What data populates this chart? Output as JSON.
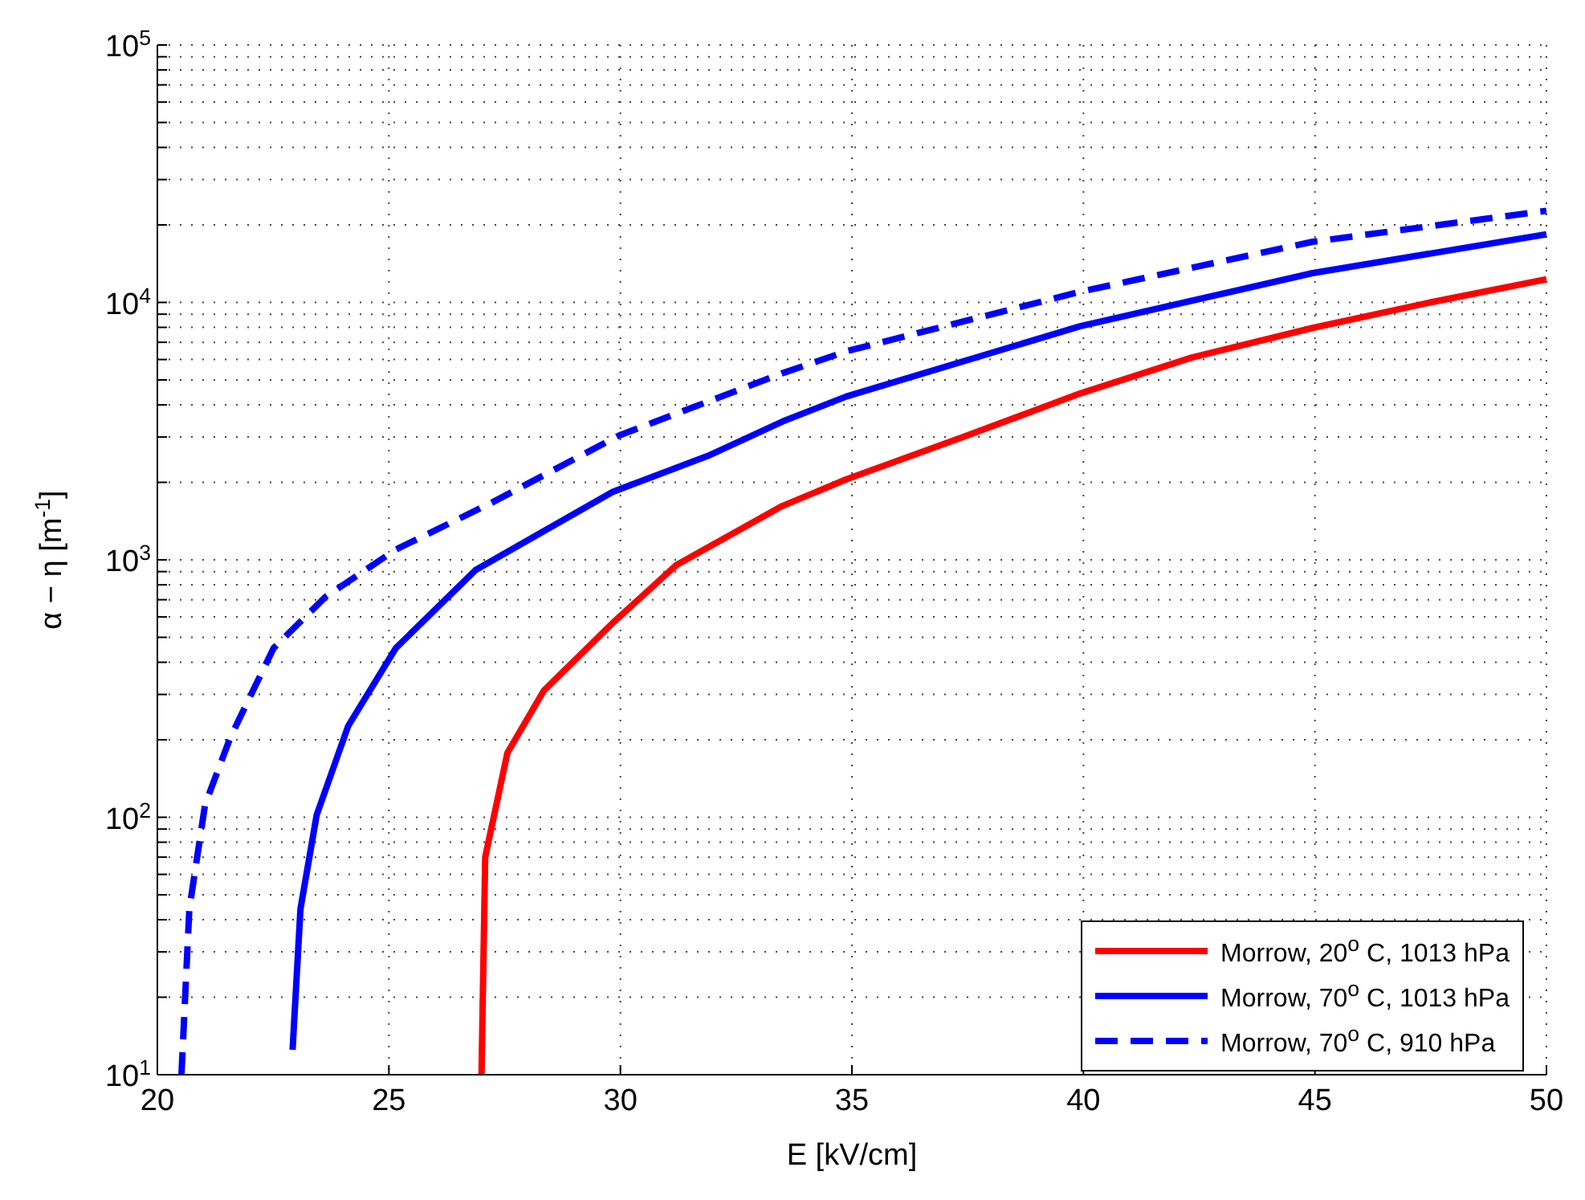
{
  "chart_data": {
    "type": "line",
    "xlabel": "E [kV/cm]",
    "ylabel": "α − η [m$^{-1}$]",
    "log": "y",
    "grid": true,
    "legend": "bottom right",
    "marker": "none",
    "xlim": [
      20,
      50
    ],
    "xticks": [
      20,
      25,
      30,
      35,
      40,
      45,
      50
    ],
    "ylim": [
      10,
      100000
    ],
    "yticks": [
      {
        "value": 10,
        "label": "10$^{1}$"
      },
      {
        "value": 20,
        "label": null
      },
      {
        "value": 30,
        "label": null
      },
      {
        "value": 40,
        "label": null
      },
      {
        "value": 50,
        "label": null
      },
      {
        "value": 60,
        "label": null
      },
      {
        "value": 70,
        "label": null
      },
      {
        "value": 80,
        "label": null
      },
      {
        "value": 90,
        "label": null
      },
      {
        "value": 100,
        "label": "10$^{2}$"
      },
      {
        "value": 200,
        "label": null
      },
      {
        "value": 300,
        "label": null
      },
      {
        "value": 400,
        "label": null
      },
      {
        "value": 500,
        "label": null
      },
      {
        "value": 600,
        "label": null
      },
      {
        "value": 700,
        "label": null
      },
      {
        "value": 800,
        "label": null
      },
      {
        "value": 900,
        "label": null
      },
      {
        "value": 1000,
        "label": "10$^{3}$"
      },
      {
        "value": 2000,
        "label": null
      },
      {
        "value": 3000,
        "label": null
      },
      {
        "value": 4000,
        "label": null
      },
      {
        "value": 5000,
        "label": null
      },
      {
        "value": 6000,
        "label": null
      },
      {
        "value": 7000,
        "label": null
      },
      {
        "value": 8000,
        "label": null
      },
      {
        "value": 9000,
        "label": null
      },
      {
        "value": 10000,
        "label": "10$^{4}$"
      },
      {
        "value": 20000,
        "label": null
      },
      {
        "value": 30000,
        "label": null
      },
      {
        "value": 40000,
        "label": null
      },
      {
        "value": 50000,
        "label": null
      },
      {
        "value": 60000,
        "label": null
      },
      {
        "value": 70000,
        "label": null
      },
      {
        "value": 80000,
        "label": null
      },
      {
        "value": 90000,
        "label": null
      },
      {
        "value": 100000,
        "label": "10$^{5}$"
      }
    ],
    "series": [
      {
        "name": "Morrow, 20$^{o}$ C, 1013 hPa",
        "color": "#ff0000",
        "line_style": "solid",
        "x": [
          27.0,
          27.08,
          27.56,
          28.35,
          29.83,
          31.2,
          33.5,
          34.88,
          37.39,
          39.93,
          42.34,
          44.95,
          47.49,
          50
        ],
        "values": [
          10,
          70,
          178,
          311,
          568,
          952,
          1620,
          2054,
          2994,
          4430,
          6110,
          7960,
          10000,
          12300
        ]
      },
      {
        "name": "Morrow, 70$^{o}$ C, 1013 hPa",
        "color": "#0000ff",
        "line_style": "solid",
        "x": [
          22.92,
          23.09,
          23.44,
          24.12,
          25.15,
          26.87,
          29.83,
          31.89,
          33.5,
          34.88,
          39.93,
          44.95,
          50
        ],
        "values": [
          12.5,
          44,
          102,
          226,
          454,
          912,
          1836,
          2535,
          3445,
          4310,
          8080,
          13000,
          18400
        ]
      },
      {
        "name": "Morrow, 70$^{o}$ C, 910 hPa",
        "color": "#0000ff",
        "line_style": "dashed",
        "x": [
          20.52,
          20.69,
          21.03,
          21.58,
          22.51,
          23.64,
          25.15,
          27.22,
          29.97,
          33.5,
          34.88,
          39.93,
          44.95,
          50
        ],
        "values": [
          10,
          44,
          112,
          205,
          454,
          720,
          1096,
          1667,
          3040,
          5310,
          6460,
          11000,
          17200,
          22700
        ]
      }
    ]
  }
}
